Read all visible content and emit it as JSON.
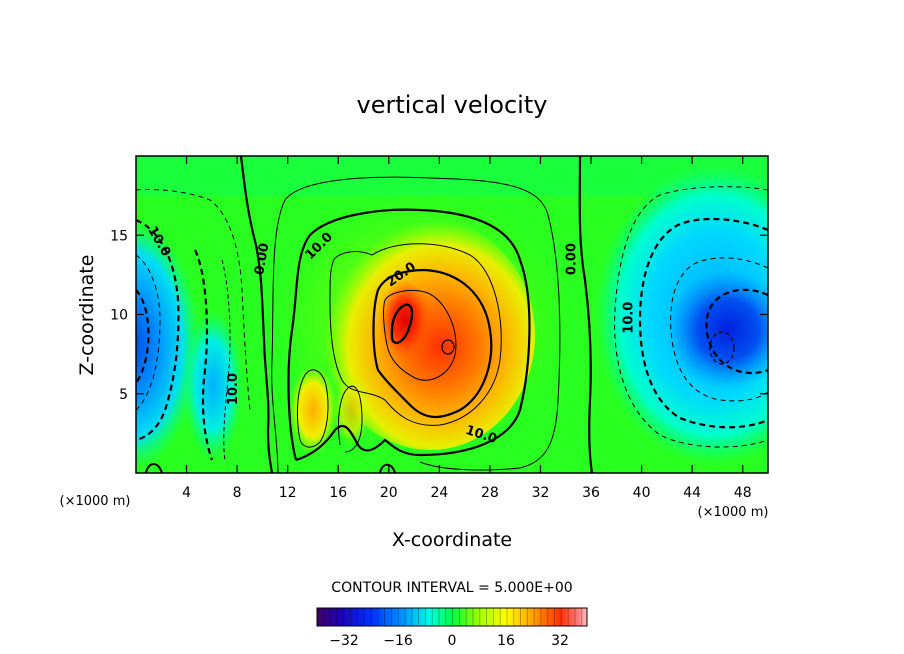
{
  "chart_data": {
    "type": "contour",
    "title": "vertical velocity",
    "xlabel": "X-coordinate",
    "ylabel": "Z-coordinate",
    "x_unit": "(×1000 m)",
    "x_unit_right": "(×1000 m)",
    "xlim": [
      0,
      50
    ],
    "ylim": [
      0,
      20
    ],
    "x_ticks": [
      4,
      8,
      12,
      16,
      20,
      24,
      28,
      32,
      36,
      40,
      44,
      48
    ],
    "y_ticks": [
      5,
      10,
      15
    ],
    "contour_interval_text": "CONTOUR INTERVAL = 5.000E+00",
    "colorbar": {
      "min": -40,
      "max": 40,
      "ticks": [
        -32,
        -16,
        0,
        16,
        32
      ]
    },
    "contour_labels": [
      {
        "text": "10.0",
        "x": 1.8,
        "y": 14.6,
        "angle": 60
      },
      {
        "text": "0.00",
        "x": 10.0,
        "y": 13.5,
        "angle": -80
      },
      {
        "text": "10.0",
        "x": 14.5,
        "y": 14.3,
        "angle": -45
      },
      {
        "text": "20.0",
        "x": 21.0,
        "y": 12.5,
        "angle": -35
      },
      {
        "text": "0.00",
        "x": 34.5,
        "y": 13.5,
        "angle": -90
      },
      {
        "text": "10.0",
        "x": 39.0,
        "y": 9.8,
        "angle": -90
      },
      {
        "text": "10.0",
        "x": 7.7,
        "y": 5.3,
        "angle": -90
      },
      {
        "text": "10.0",
        "x": 27.3,
        "y": 2.4,
        "angle": 18
      }
    ],
    "features": [
      {
        "name": "updraft-core",
        "x": 21.5,
        "y": 10.0,
        "peak": 35
      },
      {
        "name": "updraft-secondary",
        "x": 25.0,
        "y": 8.0,
        "peak": 28
      },
      {
        "name": "downdraft-left",
        "x": 0.5,
        "y": 8.0,
        "peak": -24
      },
      {
        "name": "downdraft-right",
        "x": 47.0,
        "y": 9.0,
        "peak": -28
      }
    ]
  }
}
